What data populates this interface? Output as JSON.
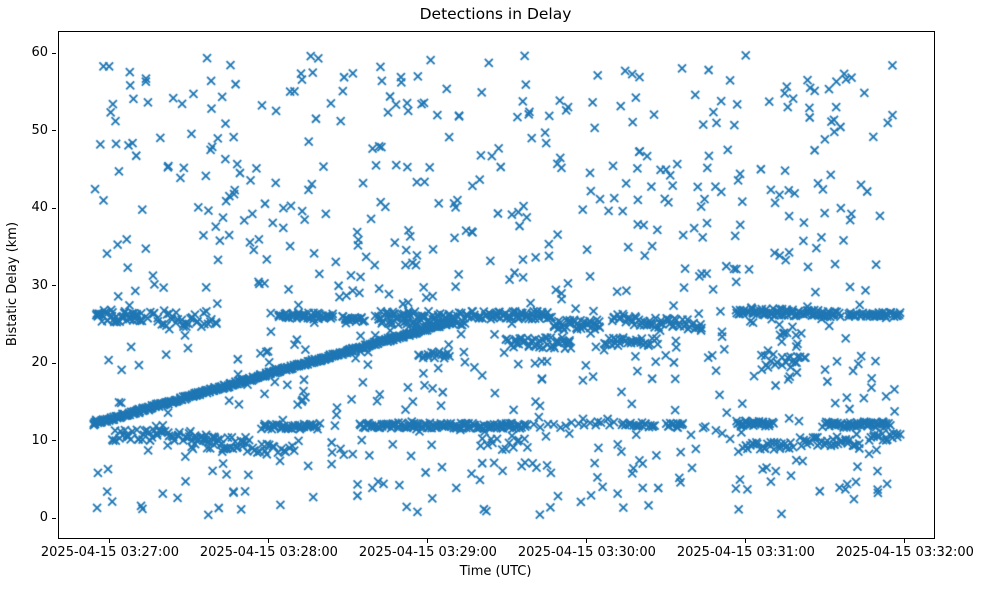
{
  "chart_data": {
    "type": "scatter",
    "title": "Detections in Delay",
    "xlabel": "Time (UTC)",
    "ylabel": "Bistatic Delay (km)",
    "marker": "x",
    "marker_color": "#1f77b4",
    "marker_size_px": 8,
    "marker_line_width": 1.8,
    "grid": false,
    "legend": null,
    "x_unit": "seconds after 2025-04-15 03:27:00 UTC",
    "xlim": [
      -19.6,
      310.6
    ],
    "ylim": [
      -2.45,
      62.84
    ],
    "x_ticks": [
      {
        "t": 0,
        "label": "2025-04-15 03:27:00"
      },
      {
        "t": 60,
        "label": "2025-04-15 03:28:00"
      },
      {
        "t": 120,
        "label": "2025-04-15 03:29:00"
      },
      {
        "t": 180,
        "label": "2025-04-15 03:30:00"
      },
      {
        "t": 240,
        "label": "2025-04-15 03:31:00"
      },
      {
        "t": 300,
        "label": "2025-04-15 03:32:00"
      }
    ],
    "y_ticks": [
      {
        "d": 0,
        "label": "0"
      },
      {
        "d": 10,
        "label": "10"
      },
      {
        "d": 20,
        "label": "20"
      },
      {
        "d": 30,
        "label": "30"
      },
      {
        "d": 40,
        "label": "40"
      },
      {
        "d": 50,
        "label": "50"
      },
      {
        "d": 60,
        "label": "60"
      }
    ],
    "seed": 20250415,
    "tracks": [
      {
        "name": "rising-track",
        "t0": -6.4,
        "t1": 130,
        "d0": 12.3,
        "d1": 25.6,
        "n": 500,
        "jt": 0.5,
        "jd": 0.22
      },
      {
        "name": "band26-a",
        "t0": -6,
        "t1": 12,
        "d0": 26.2,
        "d1": 26.2,
        "n": 42,
        "jt": 0.6,
        "jd": 0.8
      },
      {
        "name": "band26-b",
        "t0": 15,
        "t1": 40,
        "d0": 25.9,
        "d1": 25.9,
        "n": 34,
        "jt": 0.6,
        "jd": 1.1
      },
      {
        "name": "band26-c",
        "t0": 63,
        "t1": 84,
        "d0": 26.2,
        "d1": 26.2,
        "n": 48,
        "jt": 0.6,
        "jd": 0.4
      },
      {
        "name": "band26-d",
        "t0": 87,
        "t1": 95.5,
        "d0": 25.8,
        "d1": 25.8,
        "n": 18,
        "jt": 0.6,
        "jd": 0.35
      },
      {
        "name": "band26-e",
        "t0": 100,
        "t1": 135,
        "d0": 26.0,
        "d1": 25.8,
        "n": 85,
        "jt": 0.6,
        "jd": 0.9
      },
      {
        "name": "band26-f",
        "t0": 136,
        "t1": 166,
        "d0": 26.3,
        "d1": 26.3,
        "n": 65,
        "jt": 0.6,
        "jd": 0.5
      },
      {
        "name": "band26-g",
        "t0": 167,
        "t1": 185,
        "d0": 25.1,
        "d1": 25.1,
        "n": 38,
        "jt": 0.6,
        "jd": 0.65
      },
      {
        "name": "band26-h",
        "t0": 189,
        "t1": 223,
        "d0": 25.9,
        "d1": 24.9,
        "n": 55,
        "jt": 0.6,
        "jd": 0.7
      },
      {
        "name": "band26-i",
        "t0": 236,
        "t1": 275,
        "d0": 26.9,
        "d1": 26.4,
        "n": 90,
        "jt": 0.6,
        "jd": 0.45
      },
      {
        "name": "band26-j",
        "t0": 278,
        "t1": 298,
        "d0": 26.4,
        "d1": 26.4,
        "n": 42,
        "jt": 0.6,
        "jd": 0.3
      },
      {
        "name": "band21",
        "t0": 116,
        "t1": 128,
        "d0": 21.2,
        "d1": 21.2,
        "n": 16,
        "jt": 0.5,
        "jd": 0.45
      },
      {
        "name": "band22-a",
        "t0": 149,
        "t1": 174,
        "d0": 22.7,
        "d1": 22.7,
        "n": 42,
        "jt": 0.6,
        "jd": 0.75
      },
      {
        "name": "band22-b",
        "t0": 186,
        "t1": 206,
        "d0": 22.9,
        "d1": 22.9,
        "n": 30,
        "jt": 0.6,
        "jd": 0.55
      },
      {
        "name": "cluster20",
        "t0": 246,
        "t1": 262,
        "d0": 20.4,
        "d1": 20.4,
        "n": 20,
        "jt": 0.6,
        "jd": 0.9
      },
      {
        "name": "band12-a",
        "t0": 57,
        "t1": 78,
        "d0": 11.9,
        "d1": 11.9,
        "n": 42,
        "jt": 0.5,
        "jd": 0.35
      },
      {
        "name": "band12-b",
        "t0": 94,
        "t1": 157,
        "d0": 12.1,
        "d1": 12.0,
        "n": 135,
        "jt": 0.5,
        "jd": 0.35
      },
      {
        "name": "band12-c",
        "t0": 160,
        "t1": 190,
        "d0": 12.1,
        "d1": 12.1,
        "n": 14,
        "jt": 0.6,
        "jd": 0.4
      },
      {
        "name": "band12-d",
        "t0": 193,
        "t1": 205,
        "d0": 12.1,
        "d1": 12.1,
        "n": 18,
        "jt": 0.5,
        "jd": 0.4
      },
      {
        "name": "band12-e",
        "t0": 210,
        "t1": 216,
        "d0": 12.0,
        "d1": 12.0,
        "n": 13,
        "jt": 0.5,
        "jd": 0.4
      },
      {
        "name": "band12-f",
        "t0": 236,
        "t1": 250,
        "d0": 12.3,
        "d1": 12.3,
        "n": 32,
        "jt": 0.5,
        "jd": 0.35
      },
      {
        "name": "band12-g",
        "t0": 269,
        "t1": 294,
        "d0": 12.2,
        "d1": 12.2,
        "n": 52,
        "jt": 0.5,
        "jd": 0.4
      },
      {
        "name": "band10-a",
        "t0": 0,
        "t1": 32,
        "d0": 10.8,
        "d1": 10.8,
        "n": 46,
        "jt": 0.6,
        "jd": 0.7
      },
      {
        "name": "band10-b",
        "t0": 30,
        "t1": 52,
        "d0": 9.8,
        "d1": 9.8,
        "n": 40,
        "jt": 0.6,
        "jd": 0.85
      },
      {
        "name": "band9-a",
        "t0": 52,
        "t1": 69,
        "d0": 9.1,
        "d1": 9.1,
        "n": 18,
        "jt": 0.6,
        "jd": 0.6
      },
      {
        "name": "band9-b",
        "t0": 139,
        "t1": 157,
        "d0": 9.6,
        "d1": 9.6,
        "n": 14,
        "jt": 0.6,
        "jd": 0.8
      },
      {
        "name": "band9-c",
        "t0": 239,
        "t1": 257,
        "d0": 9.5,
        "d1": 9.5,
        "n": 26,
        "jt": 0.6,
        "jd": 0.55
      },
      {
        "name": "band10-c",
        "t0": 260,
        "t1": 282,
        "d0": 10.0,
        "d1": 10.0,
        "n": 30,
        "jt": 0.6,
        "jd": 0.6
      },
      {
        "name": "band10-d",
        "t0": 286,
        "t1": 298,
        "d0": 10.6,
        "d1": 10.6,
        "n": 16,
        "jt": 0.5,
        "jd": 0.5
      }
    ],
    "noise": {
      "n": 700,
      "t_min": -6.5,
      "t_max": 297,
      "d_min": 0.4,
      "d_max": 59.9
    }
  }
}
